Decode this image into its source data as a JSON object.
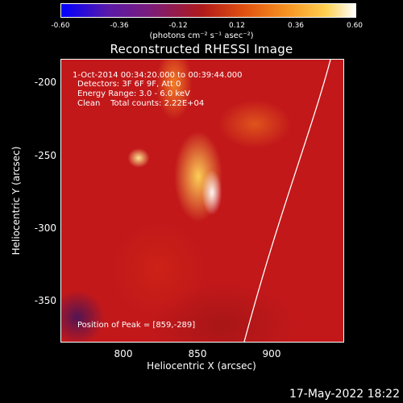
{
  "colorbar": {
    "ticks": [
      "-0.60",
      "-0.36",
      "-0.12",
      "0.12",
      "0.36",
      "0.60"
    ],
    "units": "(photons cm⁻² s⁻¹ asec⁻²)"
  },
  "title": "Reconstructed RHESSI Image",
  "info": {
    "time_range": "1-Oct-2014 00:34:20.000 to 00:39:44.000",
    "detectors": "Detectors: 3F 6F 9F, Att 0",
    "energy_range": "Energy Range: 3.0 - 6.0 keV",
    "clean_counts": "Clean    Total counts: 2.22E+04",
    "peak_position": "Position of Peak = [859,-289]"
  },
  "axes": {
    "xlabel": "Heliocentric X (arcsec)",
    "ylabel": "Heliocentric Y (arcsec)",
    "xticks": [
      "800",
      "850",
      "900"
    ],
    "yticks": [
      "-200",
      "-250",
      "-300",
      "-350"
    ]
  },
  "timestamp": "17-May-2022 18:22"
}
